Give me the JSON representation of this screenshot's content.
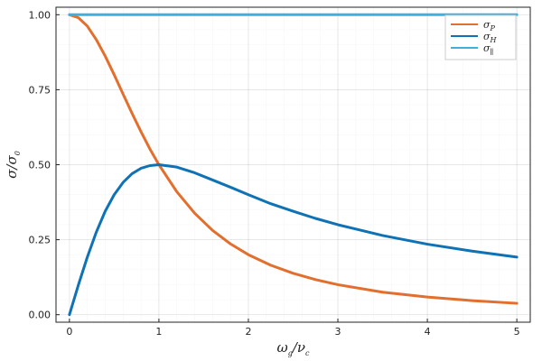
{
  "chart_data": {
    "type": "line",
    "xlabel": {
      "main": "ω",
      "sub": "g",
      "mid": "/ν",
      "sub2": "c"
    },
    "ylabel": {
      "main": "σ/σ",
      "sub": "0"
    },
    "xlim": [
      -0.15,
      5.15
    ],
    "ylim": [
      -0.025,
      1.025
    ],
    "x_ticks": [
      0,
      1,
      2,
      3,
      4,
      5
    ],
    "x_tick_labels": [
      "0",
      "1",
      "2",
      "3",
      "4",
      "5"
    ],
    "y_ticks": [
      0,
      0.25,
      0.5,
      0.75,
      1.0
    ],
    "y_tick_labels": [
      "0.00",
      "0.25",
      "0.50",
      "0.75",
      "1.00"
    ],
    "grid": true,
    "legend_position": "top-right",
    "series": [
      {
        "name": "σ_P",
        "label": "σ",
        "label_sub": "P",
        "color": "#e26f2e",
        "x": [
          0,
          0.1,
          0.2,
          0.3,
          0.4,
          0.5,
          0.6,
          0.7,
          0.8,
          0.9,
          1.0,
          1.2,
          1.4,
          1.6,
          1.8,
          2.0,
          2.25,
          2.5,
          2.75,
          3.0,
          3.5,
          4.0,
          4.5,
          5.0
        ],
        "y": [
          1.0,
          0.99,
          0.962,
          0.917,
          0.862,
          0.8,
          0.735,
          0.671,
          0.61,
          0.552,
          0.5,
          0.41,
          0.338,
          0.281,
          0.236,
          0.2,
          0.165,
          0.138,
          0.117,
          0.1,
          0.075,
          0.059,
          0.047,
          0.038
        ]
      },
      {
        "name": "σ_H",
        "label": "σ",
        "label_sub": "H",
        "color": "#0f72b5",
        "x": [
          0,
          0.1,
          0.2,
          0.3,
          0.4,
          0.5,
          0.6,
          0.7,
          0.8,
          0.9,
          1.0,
          1.2,
          1.4,
          1.6,
          1.8,
          2.0,
          2.25,
          2.5,
          2.75,
          3.0,
          3.5,
          4.0,
          4.5,
          5.0
        ],
        "y": [
          0.0,
          0.099,
          0.192,
          0.275,
          0.345,
          0.4,
          0.441,
          0.47,
          0.488,
          0.497,
          0.5,
          0.492,
          0.473,
          0.449,
          0.425,
          0.4,
          0.37,
          0.345,
          0.321,
          0.3,
          0.264,
          0.235,
          0.212,
          0.192
        ]
      },
      {
        "name": "σ_∥",
        "label": "σ",
        "label_sub": "∥",
        "color": "#3fb0de",
        "x": [
          0,
          5.0
        ],
        "y": [
          1.0,
          1.0
        ]
      }
    ]
  }
}
